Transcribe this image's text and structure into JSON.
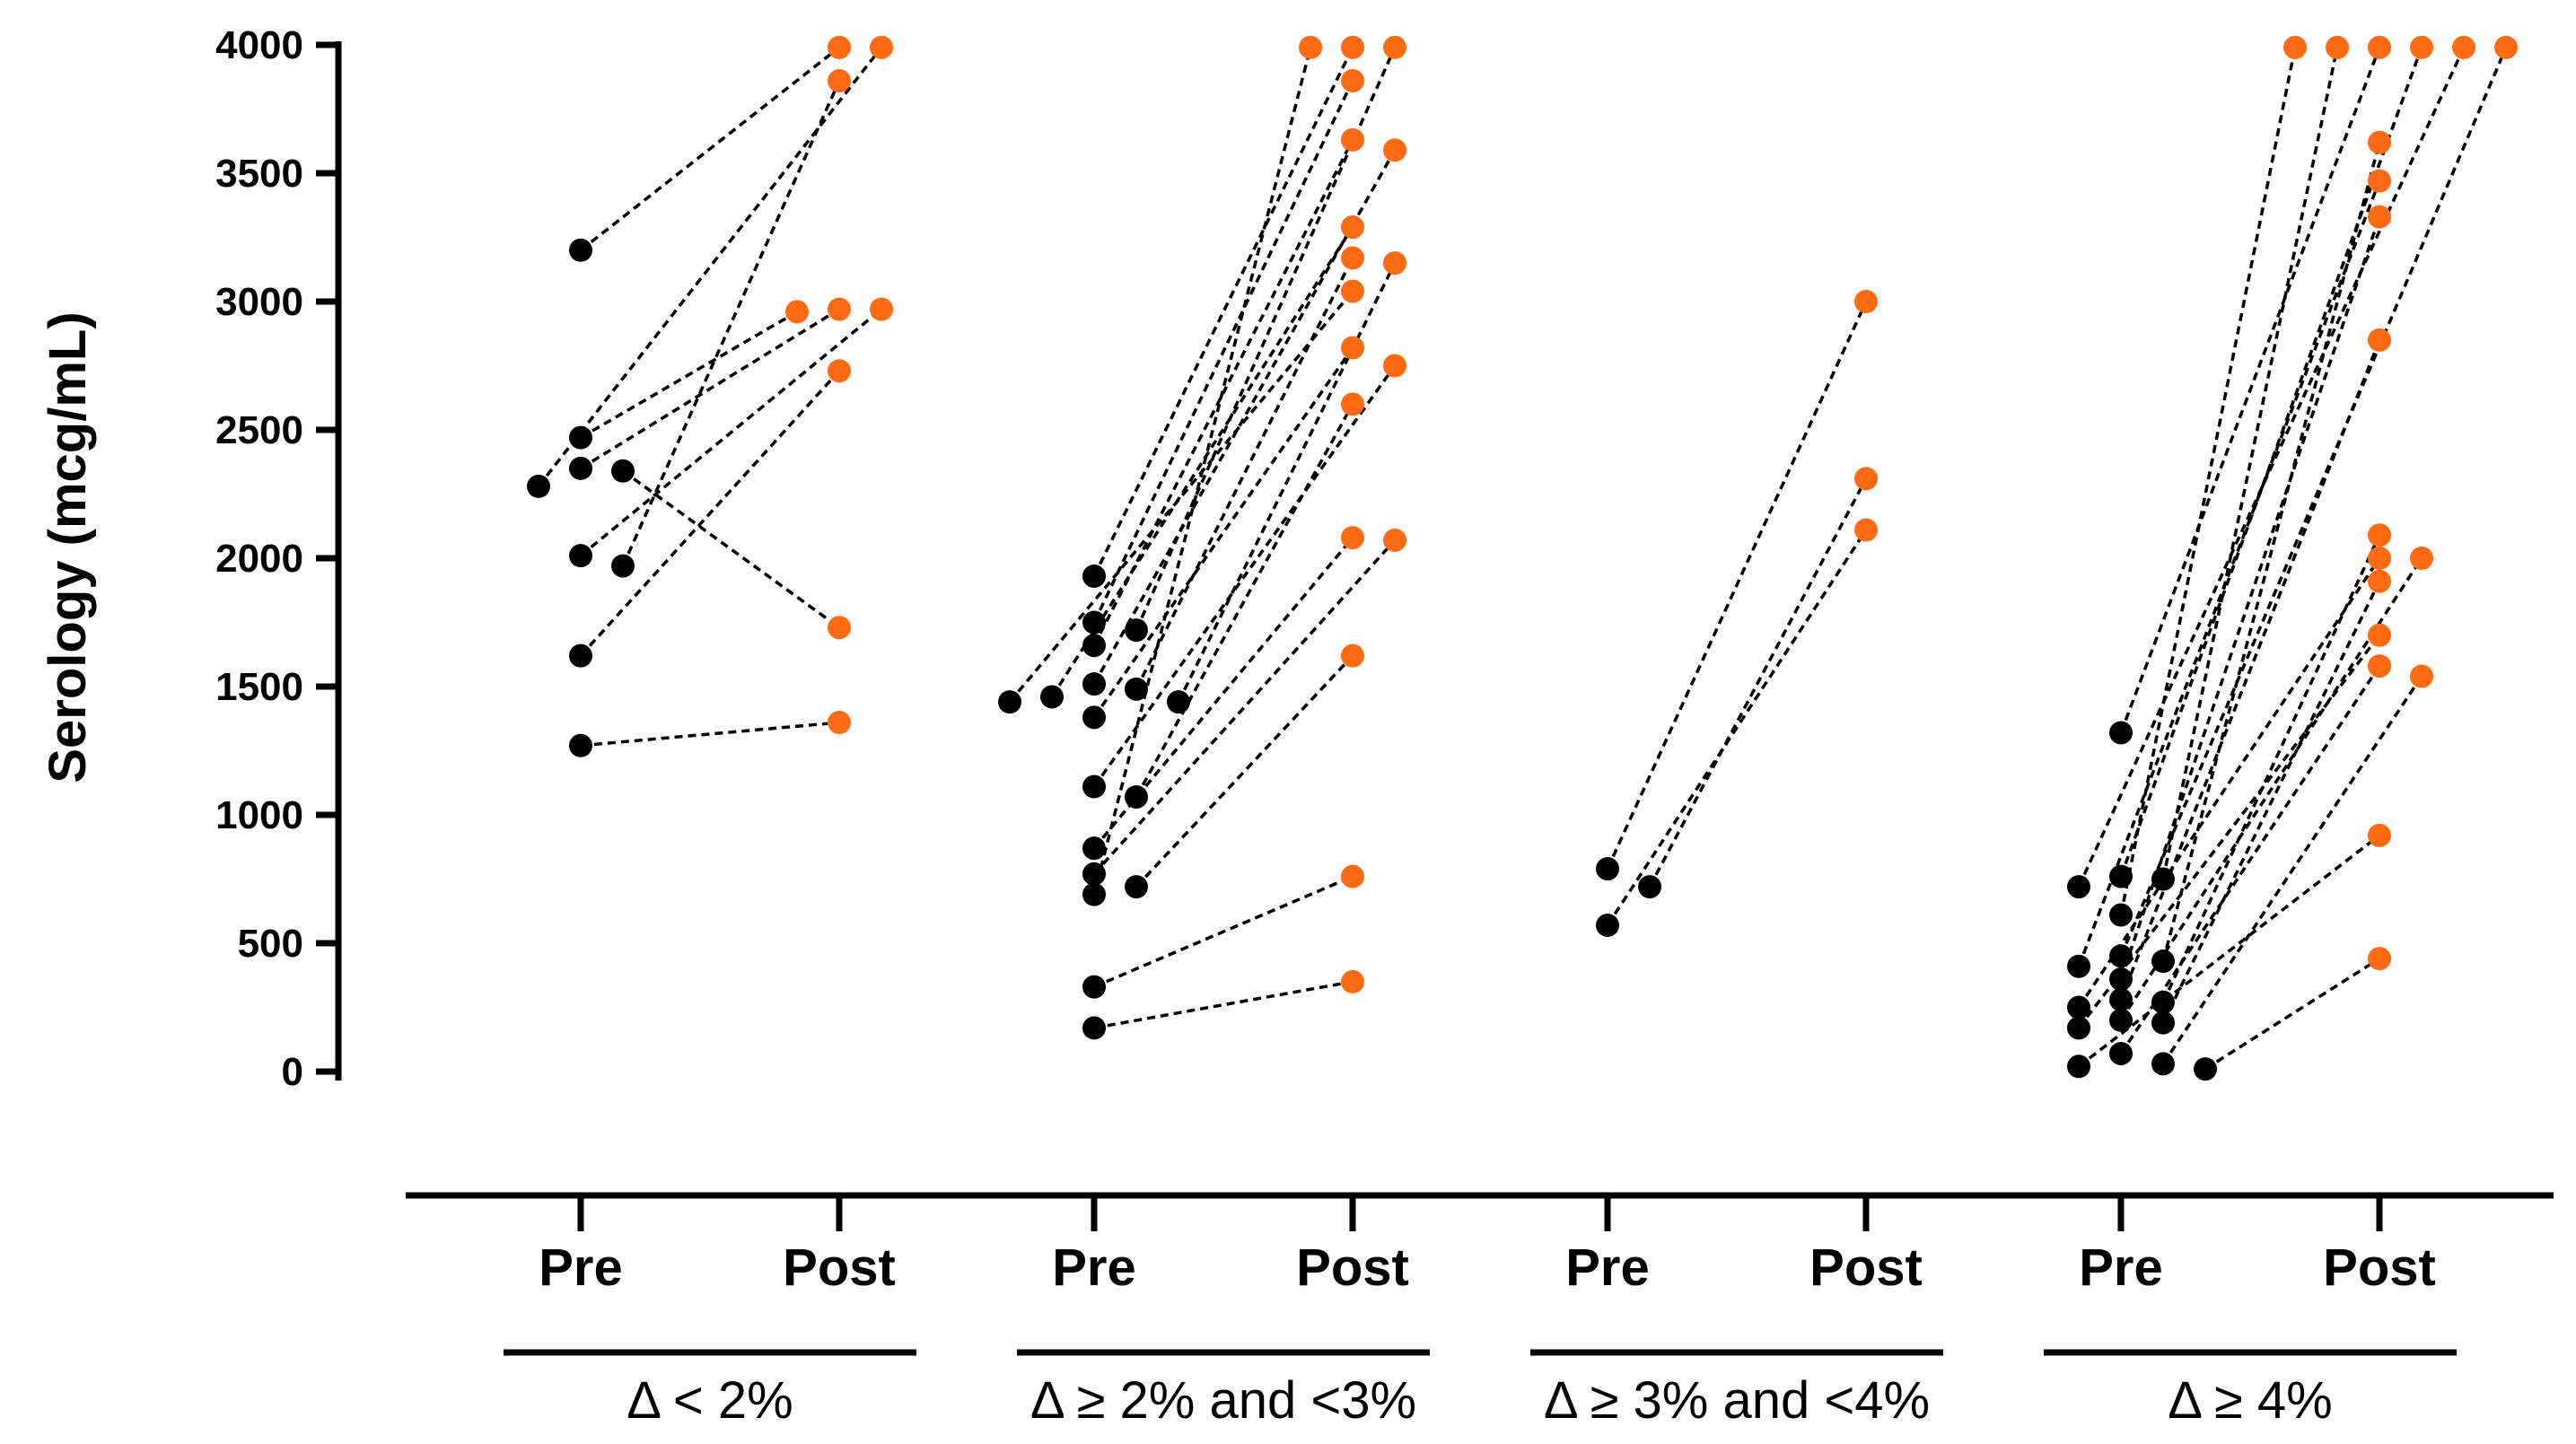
{
  "chart_data": {
    "type": "scatter",
    "ylabel": "Serology (mcg/mL)",
    "ylim": [
      0,
      4000
    ],
    "yticks": [
      "0",
      "500",
      "1000",
      "1500",
      "2000",
      "2500",
      "3000",
      "3500",
      "4000"
    ],
    "categories": [
      "Pre",
      "Post"
    ],
    "colors": {
      "pre": "#000000",
      "post": "#ff6a13",
      "line": "#000000"
    },
    "groups": [
      {
        "label": "Δ < 2%",
        "pairs": [
          [
            3200,
            3990
          ],
          [
            2470,
            2960
          ],
          [
            2350,
            2970
          ],
          [
            2340,
            1730
          ],
          [
            2280,
            3990
          ],
          [
            2010,
            2970
          ],
          [
            1970,
            3860
          ],
          [
            1620,
            2730
          ],
          [
            1270,
            1360
          ]
        ]
      },
      {
        "label": "Δ ≥ 2% and <3%",
        "pairs": [
          [
            1930,
            3990
          ],
          [
            1750,
            3860
          ],
          [
            1720,
            3990
          ],
          [
            1660,
            3630
          ],
          [
            1510,
            3590
          ],
          [
            1490,
            3170
          ],
          [
            1460,
            3290
          ],
          [
            1440,
            3150
          ],
          [
            1440,
            3040
          ],
          [
            1380,
            2820
          ],
          [
            1110,
            2750
          ],
          [
            1070,
            2600
          ],
          [
            870,
            2080
          ],
          [
            770,
            2070
          ],
          [
            720,
            1620
          ],
          [
            690,
            3990
          ],
          [
            330,
            760
          ],
          [
            170,
            350
          ]
        ]
      },
      {
        "label": "Δ ≥ 3% and <4%",
        "pairs": [
          [
            790,
            3000
          ],
          [
            720,
            2310
          ],
          [
            570,
            2110
          ]
        ]
      },
      {
        "label": "Δ ≥ 4%",
        "pairs": [
          [
            1320,
            3990
          ],
          [
            760,
            3990
          ],
          [
            750,
            3990
          ],
          [
            720,
            3990
          ],
          [
            610,
            3990
          ],
          [
            450,
            3990
          ],
          [
            430,
            3620
          ],
          [
            410,
            3470
          ],
          [
            360,
            3330
          ],
          [
            280,
            2850
          ],
          [
            270,
            2090
          ],
          [
            250,
            2000
          ],
          [
            200,
            2000
          ],
          [
            190,
            1910
          ],
          [
            170,
            1700
          ],
          [
            70,
            1580
          ],
          [
            30,
            1540
          ],
          [
            20,
            920
          ],
          [
            10,
            440
          ]
        ]
      }
    ]
  }
}
